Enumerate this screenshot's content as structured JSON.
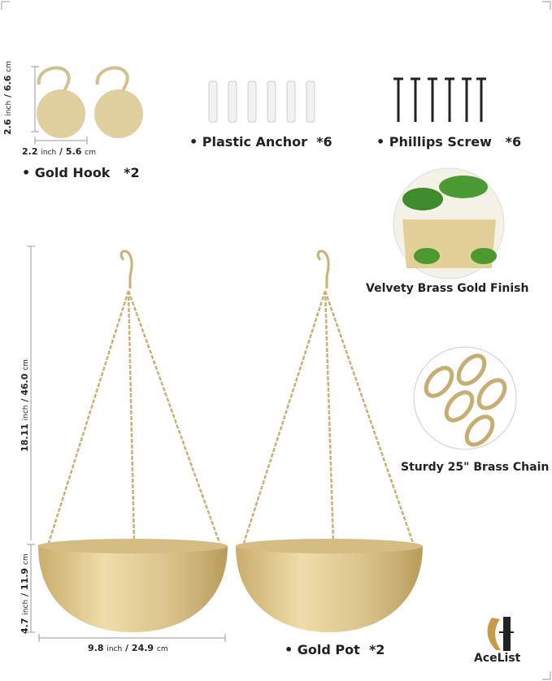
{
  "items": {
    "hook": {
      "label": "Gold Hook",
      "qty": "*2",
      "height": "2.6",
      "height_cm": "6.6",
      "width": "2.2",
      "width_cm": "5.6"
    },
    "anchor": {
      "label": "Plastic Anchor",
      "qty": "*6"
    },
    "screw": {
      "label": "Phillips Screw",
      "qty": "*6"
    },
    "pot": {
      "label": "Gold Pot",
      "qty": "*2",
      "height_total": "18.11",
      "height_total_cm": "46.0",
      "bowl_height": "4.7",
      "bowl_height_cm": "11.9",
      "diameter": "9.8",
      "diameter_cm": "24.9"
    }
  },
  "units": {
    "inch": "inch",
    "cm": "cm",
    "sep": "/"
  },
  "features": {
    "finish": "Velvety Brass Gold Finish",
    "chain": "Sturdy 25\" Brass Chain"
  },
  "brand": {
    "name": "AceList"
  },
  "colors": {
    "gold": "#d9c28a",
    "gold_dark": "#b89c5c",
    "text": "#222222"
  }
}
